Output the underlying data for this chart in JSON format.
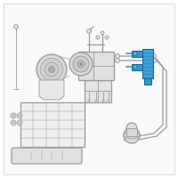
{
  "background_color": "#ffffff",
  "line_color": "#999999",
  "highlight_color": "#3399cc",
  "highlight_dark": "#1a6699",
  "highlight_light": "#66bbee",
  "fig_width": 2.0,
  "fig_height": 2.0,
  "dpi": 100
}
